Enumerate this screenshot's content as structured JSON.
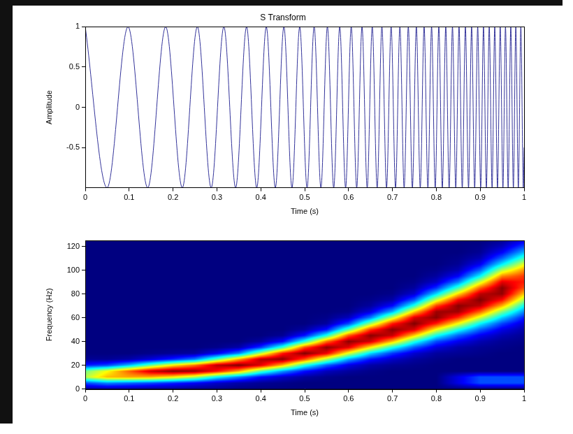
{
  "chart_data": [
    {
      "type": "line",
      "title": "S Transform",
      "x_label": "Time (s)",
      "y_label": "Amplitude",
      "x": [
        0,
        0.0497,
        0.0975,
        0.1423,
        0.1833,
        0.2212,
        0.2555,
        0.287,
        0.3159,
        0.3427,
        0.3676,
        0.3908,
        0.4126,
        0.4332,
        0.4527,
        0.4711,
        0.4887,
        0.5055,
        0.5216,
        0.537,
        0.5518,
        0.5662,
        0.5799,
        0.5933,
        0.6061,
        0.6186,
        0.6307,
        0.6425,
        0.654,
        0.6652,
        0.676,
        0.6866,
        0.697,
        0.7071,
        0.717,
        0.7267,
        0.7362,
        0.7455,
        0.7545,
        0.7634,
        0.7722,
        0.7808,
        0.7892,
        0.7975,
        0.8057,
        0.8137,
        0.8215,
        0.8292,
        0.8368,
        0.8443,
        0.8518,
        0.8591,
        0.8663,
        0.8734,
        0.8804,
        0.8874,
        0.8943,
        0.9011,
        0.9075,
        0.9141,
        0.9206,
        0.9271,
        0.9331,
        0.9394,
        0.9456,
        0.9518,
        0.9576,
        0.9637,
        0.9697,
        0.9756,
        0.9811,
        0.9869,
        0.9926,
        0.9983,
        1
      ],
      "values": [
        1,
        -1,
        1,
        -1,
        1,
        -1,
        1,
        -1,
        1,
        -1,
        1,
        -1,
        1,
        -1,
        1,
        -1,
        1,
        -1,
        1,
        -1,
        1,
        -1,
        1,
        -1,
        1,
        -1,
        1,
        -1,
        1,
        -1,
        1,
        -1,
        1,
        -1,
        1,
        -1,
        1,
        -1,
        1,
        -1,
        1,
        -1,
        1,
        -1,
        1,
        -1,
        1,
        -1,
        1,
        -1,
        1,
        -1,
        1,
        -1,
        1,
        -1,
        1,
        -1,
        1,
        -1,
        1,
        -1,
        1,
        -1,
        1,
        -1,
        1,
        -1,
        1,
        -1,
        1,
        -1,
        1,
        -1,
        -0.5
      ],
      "color": "#33339a",
      "xlim": [
        0,
        1
      ],
      "ylim": [
        -1,
        1
      ],
      "xticks": [
        0,
        0.1,
        0.2,
        0.3,
        0.4,
        0.5,
        0.6,
        0.7,
        0.8,
        0.9,
        1
      ],
      "yticks": [
        -0.5,
        0,
        0.5,
        1
      ],
      "grid": false
    },
    {
      "type": "heatmap",
      "x_label": "Time (s)",
      "y_label": "Frequency (Hz)",
      "x": [
        0,
        0.05,
        0.1,
        0.15,
        0.2,
        0.25,
        0.3,
        0.35,
        0.4,
        0.45,
        0.5,
        0.55,
        0.6,
        0.65,
        0.7,
        0.75,
        0.8,
        0.85,
        0.9,
        0.95,
        1
      ],
      "y": [
        0,
        5,
        10,
        15,
        20,
        25,
        30,
        35,
        40,
        45,
        50,
        55,
        60,
        65,
        70,
        75,
        80,
        85,
        90,
        95,
        100,
        105,
        110,
        115,
        120,
        125
      ],
      "cells": [
        [
          0.02,
          0.03,
          0.03,
          0.02,
          0.02,
          0.01,
          0.01,
          0,
          0,
          0,
          0,
          0,
          0,
          0,
          0,
          0,
          0,
          0,
          0,
          0,
          0
        ],
        [
          0.2,
          0.26,
          0.23,
          0.2,
          0.16,
          0.12,
          0.07,
          0.04,
          0.02,
          0.01,
          0,
          0,
          0,
          0,
          0,
          0,
          0,
          0.1,
          0.2,
          0.2,
          0.2
        ],
        [
          0.55,
          0.69,
          0.71,
          0.7,
          0.64,
          0.54,
          0.37,
          0.25,
          0.13,
          0.07,
          0.03,
          0.01,
          0,
          0,
          0,
          0,
          0,
          0.1,
          0.2,
          0.2,
          0.2
        ],
        [
          0.49,
          0.62,
          0.78,
          0.93,
          1,
          0.98,
          0.87,
          0.71,
          0.46,
          0.28,
          0.14,
          0.06,
          0.03,
          0.01,
          0,
          0,
          0,
          0,
          0,
          0,
          0
        ],
        [
          0.15,
          0.19,
          0.31,
          0.48,
          0.64,
          0.76,
          0.94,
          1,
          0.9,
          0.69,
          0.41,
          0.22,
          0.1,
          0.04,
          0.02,
          0.01,
          0,
          0,
          0,
          0,
          0
        ],
        [
          0.02,
          0.02,
          0.04,
          0.09,
          0.16,
          0.25,
          0.47,
          0.71,
          0.95,
          0.99,
          0.8,
          0.54,
          0.29,
          0.14,
          0.07,
          0.03,
          0.01,
          0,
          0,
          0,
          0
        ],
        [
          0,
          0,
          0,
          0.01,
          0.02,
          0.03,
          0.11,
          0.25,
          0.55,
          0.85,
          1,
          0.89,
          0.6,
          0.34,
          0.18,
          0.08,
          0.03,
          0.02,
          0.01,
          0,
          0
        ],
        [
          0,
          0,
          0,
          0,
          0,
          0,
          0.01,
          0.04,
          0.18,
          0.43,
          0.8,
          0.99,
          0.9,
          0.64,
          0.4,
          0.21,
          0.09,
          0.04,
          0.02,
          0.01,
          0
        ],
        [
          0,
          0,
          0,
          0,
          0,
          0,
          0,
          0,
          0.03,
          0.13,
          0.41,
          0.76,
          0.99,
          0.92,
          0.69,
          0.41,
          0.2,
          0.11,
          0.05,
          0.02,
          0.01
        ],
        [
          0,
          0,
          0,
          0,
          0,
          0,
          0,
          0,
          0,
          0.02,
          0.14,
          0.4,
          0.79,
          0.99,
          0.93,
          0.67,
          0.39,
          0.22,
          0.11,
          0.05,
          0.02
        ],
        [
          0,
          0,
          0,
          0,
          0,
          0,
          0,
          0,
          0,
          0,
          0.03,
          0.14,
          0.46,
          0.82,
          0.99,
          0.91,
          0.62,
          0.4,
          0.22,
          0.1,
          0.04
        ],
        [
          0,
          0,
          0,
          0,
          0,
          0,
          0,
          0,
          0,
          0,
          0,
          0.03,
          0.19,
          0.52,
          0.85,
          1,
          0.85,
          0.62,
          0.37,
          0.19,
          0.08
        ],
        [
          0,
          0,
          0,
          0,
          0,
          0,
          0,
          0,
          0,
          0,
          0,
          0.01,
          0.06,
          0.25,
          0.57,
          0.91,
          0.99,
          0.83,
          0.58,
          0.33,
          0.15
        ],
        [
          0,
          0,
          0,
          0,
          0,
          0,
          0,
          0,
          0,
          0,
          0,
          0,
          0.01,
          0.09,
          0.3,
          0.67,
          0.97,
          0.97,
          0.78,
          0.5,
          0.26
        ],
        [
          0,
          0,
          0,
          0,
          0,
          0,
          0,
          0,
          0,
          0,
          0,
          0,
          0,
          0.03,
          0.13,
          0.41,
          0.81,
          0.99,
          0.94,
          0.7,
          0.38
        ],
        [
          0,
          0,
          0,
          0,
          0,
          0,
          0,
          0,
          0,
          0,
          0,
          0,
          0,
          0.01,
          0.04,
          0.21,
          0.57,
          0.87,
          1,
          0.87,
          0.54
        ],
        [
          0,
          0,
          0,
          0,
          0,
          0,
          0,
          0,
          0,
          0,
          0,
          0,
          0,
          0,
          0.01,
          0.08,
          0.34,
          0.66,
          0.94,
          0.98,
          0.68
        ],
        [
          0,
          0,
          0,
          0,
          0,
          0,
          0,
          0,
          0,
          0,
          0,
          0,
          0,
          0,
          0,
          0.03,
          0.17,
          0.44,
          0.78,
          0.99,
          0.8
        ],
        [
          0,
          0,
          0,
          0,
          0,
          0,
          0,
          0,
          0,
          0,
          0,
          0,
          0,
          0,
          0,
          0.01,
          0.07,
          0.25,
          0.58,
          0.9,
          0.85
        ],
        [
          0,
          0,
          0,
          0,
          0,
          0,
          0,
          0,
          0,
          0,
          0,
          0,
          0,
          0,
          0,
          0,
          0.03,
          0.12,
          0.37,
          0.74,
          0.82
        ],
        [
          0,
          0,
          0,
          0,
          0,
          0,
          0,
          0,
          0,
          0,
          0,
          0,
          0,
          0,
          0,
          0,
          0.01,
          0.05,
          0.22,
          0.55,
          0.73
        ],
        [
          0,
          0,
          0,
          0,
          0,
          0,
          0,
          0,
          0,
          0,
          0,
          0,
          0,
          0,
          0,
          0,
          0,
          0.02,
          0.11,
          0.36,
          0.6
        ],
        [
          0,
          0,
          0,
          0,
          0,
          0,
          0,
          0,
          0,
          0,
          0,
          0,
          0,
          0,
          0,
          0,
          0,
          0.01,
          0.05,
          0.22,
          0.44
        ],
        [
          0,
          0,
          0,
          0,
          0,
          0,
          0,
          0,
          0,
          0,
          0,
          0,
          0,
          0,
          0,
          0,
          0,
          0,
          0.02,
          0.12,
          0.3
        ],
        [
          0,
          0,
          0,
          0,
          0,
          0,
          0,
          0,
          0,
          0,
          0,
          0,
          0,
          0,
          0,
          0,
          0,
          0,
          0.01,
          0.06,
          0.19
        ],
        [
          0,
          0,
          0,
          0,
          0,
          0,
          0,
          0,
          0,
          0,
          0,
          0,
          0,
          0,
          0,
          0,
          0,
          0,
          0,
          0.02,
          0.1
        ]
      ],
      "xlim": [
        0,
        1
      ],
      "ylim": [
        0,
        125
      ],
      "xticks": [
        0,
        0.1,
        0.2,
        0.3,
        0.4,
        0.5,
        0.6,
        0.7,
        0.8,
        0.9,
        1
      ],
      "yticks": [
        0,
        20,
        40,
        60,
        80,
        100,
        120
      ],
      "grid": false
    }
  ]
}
